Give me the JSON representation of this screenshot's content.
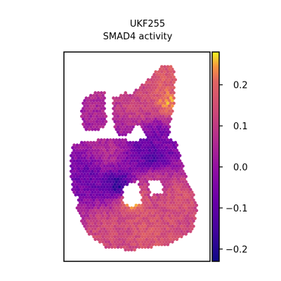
{
  "chart_data": {
    "type": "heatmap",
    "subtype": "spatial-spot-map",
    "title": "UKF255",
    "subtitle": "SMAD4 activity",
    "xlabel": "",
    "ylabel": "",
    "grid": false,
    "colormap": "plasma",
    "colorbar": {
      "position": "right",
      "vmin": -0.23,
      "vmax": 0.28,
      "ticks": [
        0.2,
        0.1,
        0.0,
        -0.1,
        -0.2
      ],
      "tick_labels": [
        "0.2",
        "0.1",
        "0.0",
        "−0.1",
        "−0.2"
      ]
    },
    "hotspots": [
      {
        "x": 0.73,
        "y": 0.24,
        "value": 0.24
      },
      {
        "x": 0.77,
        "y": 0.17,
        "value": 0.18
      },
      {
        "x": 0.46,
        "y": 0.7,
        "value": 0.27
      },
      {
        "x": 0.77,
        "y": 0.7,
        "value": 0.16
      },
      {
        "x": 0.6,
        "y": 0.86,
        "value": 0.17
      },
      {
        "x": 0.3,
        "y": 0.85,
        "value": 0.14
      },
      {
        "x": 0.5,
        "y": 0.28,
        "value": 0.12
      },
      {
        "x": 0.63,
        "y": 0.62,
        "value": 0.1
      },
      {
        "x": 0.3,
        "y": 0.48,
        "value": 0.06
      },
      {
        "x": 0.38,
        "y": 0.64,
        "value": -0.2
      },
      {
        "x": 0.62,
        "y": 0.5,
        "value": -0.14
      },
      {
        "x": 0.18,
        "y": 0.6,
        "value": -0.08
      },
      {
        "x": 0.65,
        "y": 0.4,
        "value": -0.05
      },
      {
        "x": 0.55,
        "y": 0.45,
        "value": -0.1
      }
    ]
  }
}
